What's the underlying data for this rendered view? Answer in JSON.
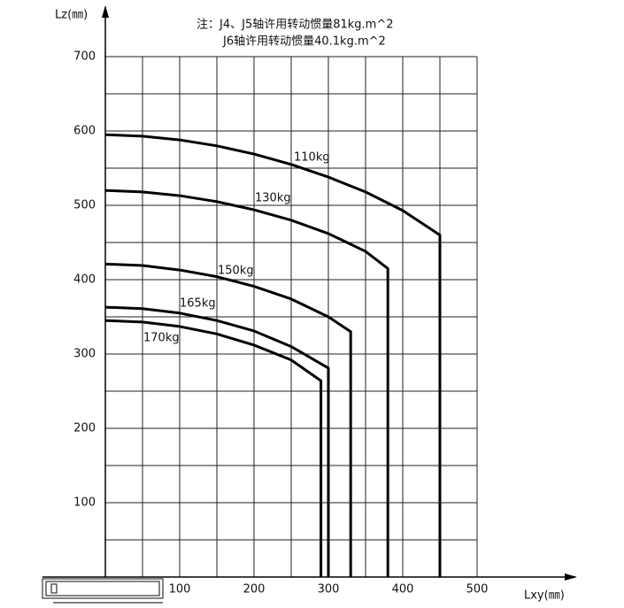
{
  "chart_data": {
    "type": "line",
    "notes": [
      "注：J4、J5轴许用转动惯量81kg.m^2",
      "J6轴许用转动惯量40.1kg.m^2"
    ],
    "y_label": "Lz(㎜)",
    "x_label": "Lxy(㎜)",
    "xlim": [
      0,
      500
    ],
    "ylim": [
      0,
      700
    ],
    "xticks": [
      100,
      200,
      300,
      400,
      500
    ],
    "yticks": [
      100,
      200,
      300,
      400,
      500,
      600,
      700
    ],
    "x_minor_grid": [
      50,
      150,
      250,
      350,
      450
    ],
    "y_minor_grid": [
      50,
      150,
      250,
      350,
      450,
      550,
      650
    ],
    "grid": true,
    "series": [
      {
        "name": "110kg",
        "color": "#000000",
        "x": [
          0,
          50,
          100,
          150,
          200,
          250,
          300,
          350,
          400,
          450,
          450
        ],
        "values": [
          595,
          593,
          588,
          580,
          569,
          555,
          538,
          518,
          493,
          460,
          0
        ]
      },
      {
        "name": "130kg",
        "color": "#000000",
        "x": [
          0,
          50,
          100,
          150,
          200,
          250,
          300,
          350,
          380,
          380
        ],
        "values": [
          520,
          518,
          513,
          505,
          494,
          480,
          462,
          438,
          415,
          0
        ]
      },
      {
        "name": "150kg",
        "color": "#000000",
        "x": [
          0,
          50,
          100,
          150,
          200,
          250,
          300,
          330,
          330
        ],
        "values": [
          421,
          419,
          413,
          404,
          391,
          374,
          350,
          330,
          0
        ]
      },
      {
        "name": "165kg",
        "color": "#000000",
        "x": [
          0,
          50,
          100,
          150,
          200,
          250,
          300,
          300
        ],
        "values": [
          363,
          361,
          355,
          345,
          331,
          310,
          281,
          0
        ]
      },
      {
        "name": "170kg",
        "color": "#000000",
        "x": [
          0,
          50,
          100,
          150,
          200,
          250,
          290,
          290
        ],
        "values": [
          345,
          343,
          337,
          327,
          312,
          292,
          264,
          0
        ]
      }
    ]
  }
}
